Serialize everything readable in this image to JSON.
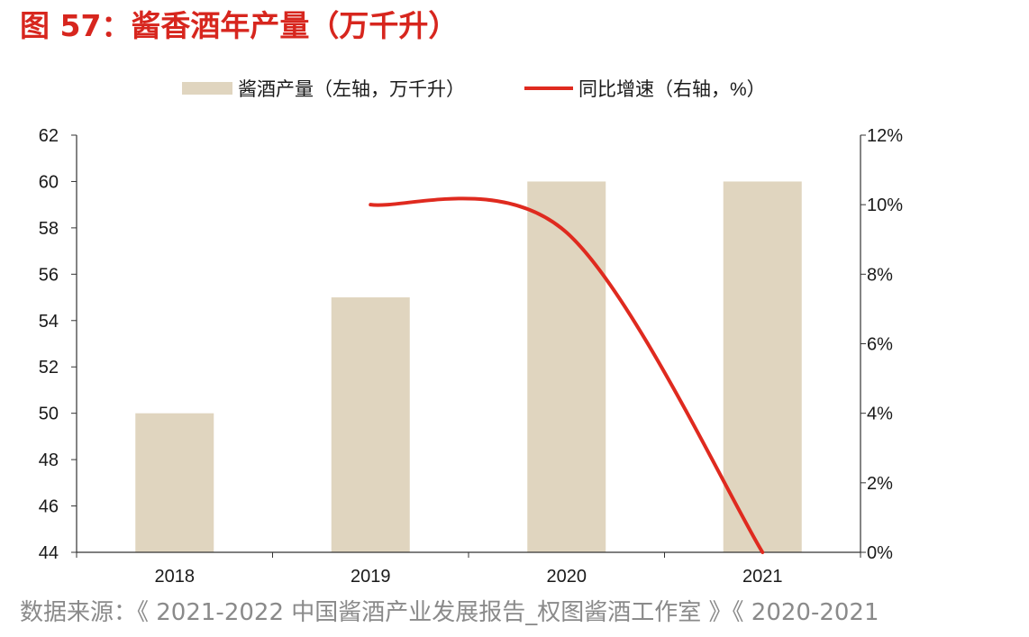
{
  "figure": {
    "title": "图 57：酱香酒年产量（万千升）",
    "source": "数据来源：《 2021-2022 中国酱酒产业发展报告_权图酱酒工作室 》《 2020-2021"
  },
  "colors": {
    "title": "#d7261e",
    "bar": "#e0d5bf",
    "line": "#df2a1f",
    "axis": "#333333",
    "source_text": "#8a8a8a"
  },
  "chart_data": {
    "type": "bar",
    "categories": [
      "2018",
      "2019",
      "2020",
      "2021"
    ],
    "series": [
      {
        "name": "酱酒产量（左轴，万千升）",
        "type": "bar",
        "axis": "left",
        "values": [
          50,
          55,
          60,
          60
        ]
      },
      {
        "name": "同比增速（右轴，%）",
        "type": "line",
        "axis": "right",
        "smooth": true,
        "values": [
          null,
          10,
          9.2,
          0
        ]
      }
    ],
    "y_left": {
      "lim": [
        44,
        62
      ],
      "ticks": [
        "62",
        "60",
        "58",
        "56",
        "54",
        "52",
        "50",
        "48",
        "46",
        "44"
      ]
    },
    "y_right": {
      "lim": [
        0,
        12
      ],
      "ticks": [
        "12%",
        "10%",
        "8%",
        "6%",
        "4%",
        "2%",
        "0%"
      ]
    },
    "legend_position": "top",
    "grid": false
  }
}
